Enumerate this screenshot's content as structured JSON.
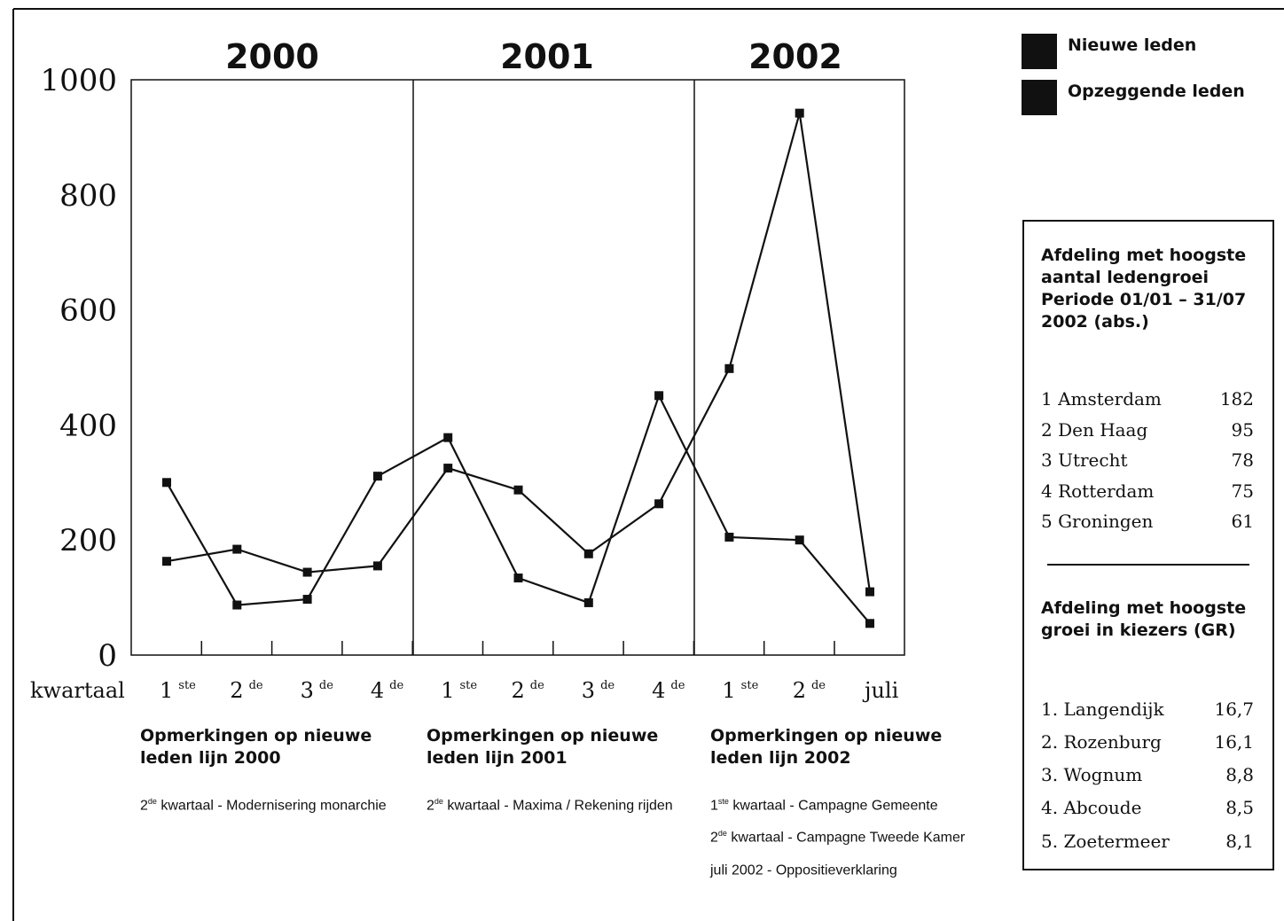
{
  "chart_data": {
    "type": "line",
    "years": [
      "2000",
      "2001",
      "2002"
    ],
    "x_axis_label": "kwartaal",
    "categories": [
      {
        "main": "1",
        "sup": "ste"
      },
      {
        "main": "2",
        "sup": "de"
      },
      {
        "main": "3",
        "sup": "de"
      },
      {
        "main": "4",
        "sup": "de"
      },
      {
        "main": "1",
        "sup": "ste"
      },
      {
        "main": "2",
        "sup": "de"
      },
      {
        "main": "3",
        "sup": "de"
      },
      {
        "main": "4",
        "sup": "de"
      },
      {
        "main": "1",
        "sup": "ste"
      },
      {
        "main": "2",
        "sup": "de"
      },
      {
        "main": "juli",
        "sup": ""
      }
    ],
    "ylim": [
      0,
      1000
    ],
    "yticks": [
      0,
      200,
      400,
      600,
      800,
      1000
    ],
    "series": [
      {
        "name": "Nieuwe leden",
        "values": [
          300,
          87,
          97,
          311,
          378,
          134,
          91,
          451,
          205,
          200,
          55
        ]
      },
      {
        "name": "Opzeggende leden",
        "values": [
          163,
          184,
          144,
          155,
          325,
          287,
          176,
          263,
          498,
          942,
          110
        ]
      }
    ],
    "line_color": "#111111"
  },
  "legend": [
    {
      "label": "Nieuwe leden",
      "color": "#111111"
    },
    {
      "label": "Opzeggende leden",
      "color": "#111111"
    }
  ],
  "box": {
    "title1": "Afdeling met hoogste aantal ledengroei Periode 01/01 – 31/07 2002 (abs.)",
    "list1": [
      {
        "name": "1 Amsterdam",
        "value": "182"
      },
      {
        "name": "2 Den Haag",
        "value": "95"
      },
      {
        "name": "3 Utrecht",
        "value": "78"
      },
      {
        "name": "4 Rotterdam",
        "value": "75"
      },
      {
        "name": "5 Groningen",
        "value": "61"
      }
    ],
    "title2": "Afdeling met hoogste groei in kiezers (GR)",
    "list2": [
      {
        "name": "1. Langendijk",
        "value": "16,7"
      },
      {
        "name": "2. Rozenburg",
        "value": "16,1"
      },
      {
        "name": "3. Wognum",
        "value": "8,8"
      },
      {
        "name": "4. Abcoude",
        "value": "8,5"
      },
      {
        "name": "5. Zoetermeer",
        "value": "8,1"
      }
    ]
  },
  "notes": [
    {
      "title": "Opmerkingen op nieuwe leden lijn 2000",
      "items": [
        {
          "sup": "de",
          "pre": "2",
          "text": " kwartaal - Modernisering monarchie"
        }
      ]
    },
    {
      "title": "Opmerkingen op nieuwe leden lijn 2001",
      "items": [
        {
          "sup": "de",
          "pre": "2",
          "text": " kwartaal - Maxima / Rekening rijden"
        }
      ]
    },
    {
      "title": "Opmerkingen op nieuwe leden lijn 2002",
      "items": [
        {
          "sup": "ste",
          "pre": "1",
          "text": " kwartaal - Campagne Gemeente"
        },
        {
          "sup": "de",
          "pre": "2",
          "text": " kwartaal - Campagne Tweede Kamer"
        },
        {
          "sup": "",
          "pre": "",
          "text": "juli 2002 - Oppositieverklaring"
        }
      ]
    }
  ]
}
